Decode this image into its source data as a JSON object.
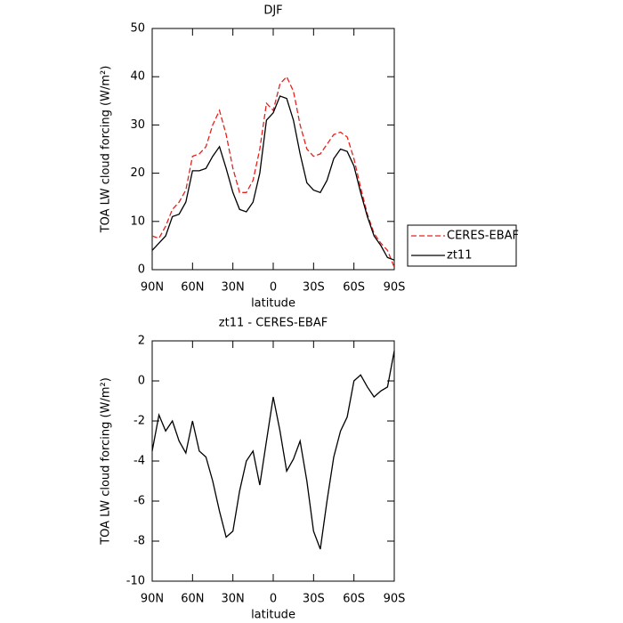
{
  "chart_data": [
    {
      "type": "line",
      "title": "DJF",
      "xlabel": "latitude",
      "ylabel": "TOA LW cloud forcing (W/m²)",
      "x": [
        90,
        85,
        80,
        75,
        70,
        65,
        60,
        55,
        50,
        45,
        40,
        35,
        30,
        25,
        20,
        15,
        10,
        5,
        0,
        -5,
        -10,
        -15,
        -20,
        -25,
        -30,
        -35,
        -40,
        -45,
        -50,
        -55,
        -60,
        -65,
        -70,
        -75,
        -80,
        -85,
        -90
      ],
      "series": [
        {
          "name": "CERES-EBAF",
          "color": "#e8201c",
          "linestyle": "dashed",
          "values": [
            7,
            6.5,
            9,
            12.5,
            14,
            16.5,
            23.5,
            24,
            25.5,
            30,
            33,
            28,
            21,
            16,
            16,
            18.5,
            25,
            34.5,
            33,
            38.5,
            40,
            37,
            30,
            25,
            23.5,
            24,
            26,
            28,
            28.5,
            27.5,
            23,
            17,
            11.5,
            7.5,
            5.5,
            4,
            0.5
          ]
        },
        {
          "name": "zt11",
          "color": "#000000",
          "linestyle": "solid",
          "values": [
            4,
            5.5,
            7,
            11,
            11.5,
            14,
            20.5,
            20.5,
            21,
            23.5,
            25.5,
            21,
            16,
            12.5,
            12,
            14,
            20,
            31,
            32.5,
            36,
            35.5,
            31,
            24,
            18,
            16.5,
            16,
            18.5,
            23,
            25,
            24.5,
            21.5,
            16,
            11,
            7,
            5,
            2.5,
            2
          ]
        }
      ],
      "xlim": [
        90,
        -90
      ],
      "xticks": [
        {
          "value": 90,
          "label": "90N"
        },
        {
          "value": 60,
          "label": "60N"
        },
        {
          "value": 30,
          "label": "30N"
        },
        0,
        {
          "value": -30,
          "label": "30S"
        },
        {
          "value": -60,
          "label": "60S"
        },
        {
          "value": -90,
          "label": "90S"
        }
      ],
      "ylim": [
        0,
        50
      ],
      "yticks": [
        0,
        10,
        20,
        30,
        40,
        50
      ],
      "legend": "right"
    },
    {
      "type": "line",
      "title": "zt11 - CERES-EBAF",
      "xlabel": "latitude",
      "ylabel": "TOA LW cloud forcing (W/m²)",
      "x": [
        90,
        85,
        80,
        75,
        70,
        65,
        60,
        55,
        50,
        45,
        40,
        35,
        30,
        25,
        20,
        15,
        10,
        5,
        0,
        -5,
        -10,
        -15,
        -20,
        -25,
        -30,
        -35,
        -40,
        -45,
        -50,
        -55,
        -60,
        -65,
        -70,
        -75,
        -80,
        -85,
        -90
      ],
      "series": [
        {
          "color": "#000000",
          "linestyle": "solid",
          "values": [
            -3.5,
            -1.7,
            -2.5,
            -2,
            -3,
            -3.6,
            -2,
            -3.5,
            -3.8,
            -5,
            -6.5,
            -7.8,
            -7.5,
            -5.5,
            -4,
            -3.5,
            -5.2,
            -3,
            -0.8,
            -2.5,
            -4.5,
            -3.9,
            -3,
            -5,
            -7.5,
            -8.4,
            -6,
            -3.8,
            -2.5,
            -1.8,
            0,
            0.3,
            -0.3,
            -0.8,
            -0.5,
            -0.3,
            1.5
          ]
        }
      ],
      "xlim": [
        90,
        -90
      ],
      "xticks": [
        {
          "value": 90,
          "label": "90N"
        },
        {
          "value": 60,
          "label": "60N"
        },
        {
          "value": 30,
          "label": "30N"
        },
        0,
        {
          "value": -30,
          "label": "30S"
        },
        {
          "value": -60,
          "label": "60S"
        },
        {
          "value": -90,
          "label": "90S"
        }
      ],
      "ylim": [
        -10,
        2
      ],
      "yticks": [
        -10,
        -8,
        -6,
        -4,
        -2,
        0,
        2
      ]
    }
  ]
}
